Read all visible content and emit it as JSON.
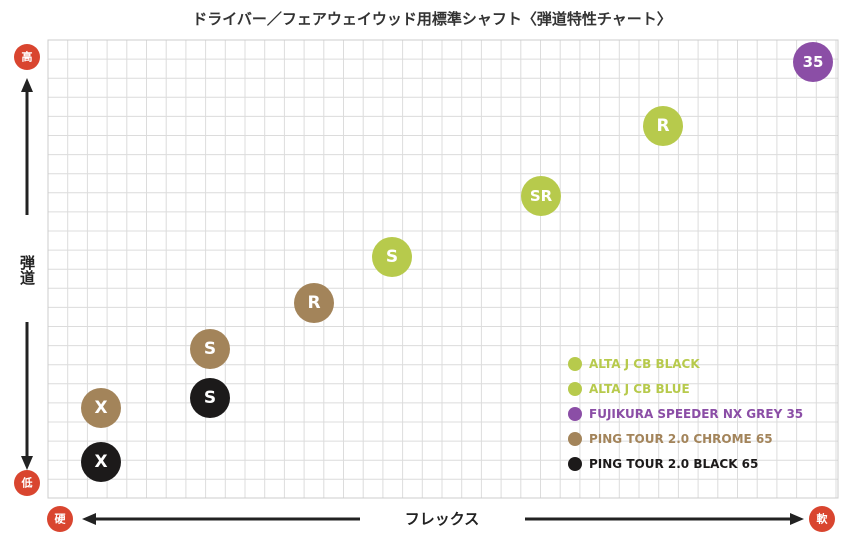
{
  "title": "ドライバー／フェアウェイウッド用標準シャフト〈弾道特性チャート〉",
  "y_axis": {
    "top": "高",
    "label": "弾道",
    "bottom": "低"
  },
  "x_axis": {
    "left": "硬",
    "label": "フレックス",
    "right": "軟"
  },
  "points": [
    {
      "label": "35",
      "color": "#8b4ea6"
    },
    {
      "label": "R",
      "color": "#b7ca4c"
    },
    {
      "label": "SR",
      "color": "#b7ca4c"
    },
    {
      "label": "S",
      "color": "#b7ca4c"
    },
    {
      "label": "R",
      "color": "#a3845a"
    },
    {
      "label": "S",
      "color": "#a3845a"
    },
    {
      "label": "S",
      "color": "#1c1a1a"
    },
    {
      "label": "X",
      "color": "#a3845a"
    },
    {
      "label": "X",
      "color": "#1c1a1a"
    }
  ],
  "legend": [
    {
      "name": "ALTA J CB BLACK",
      "color": "#b7ca4c"
    },
    {
      "name": "ALTA J CB BLUE",
      "color": "#b7ca4c"
    },
    {
      "name": "FUJIKURA SPEEDER NX GREY 35",
      "color": "#8b4ea6"
    },
    {
      "name": "PING TOUR 2.0 CHROME 65",
      "color": "#a3845a"
    },
    {
      "name": "PING TOUR 2.0 BLACK 65",
      "color": "#1c1a1a"
    }
  ]
}
